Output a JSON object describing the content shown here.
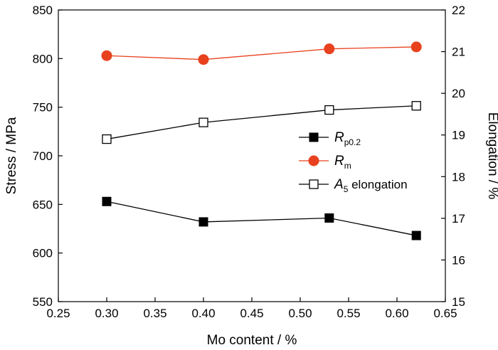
{
  "chart_data": {
    "type": "line",
    "xlabel": "Mo content / %",
    "ylabel_left": "Stress / MPa",
    "ylabel_right": "Elongation / %",
    "xlim": [
      0.25,
      0.65
    ],
    "ylim_left": [
      550,
      850
    ],
    "ylim_right": [
      15,
      22
    ],
    "x_ticks": [
      "0.25",
      "0.30",
      "0.35",
      "0.40",
      "0.45",
      "0.50",
      "0.55",
      "0.60",
      "0.65"
    ],
    "y_left_ticks": [
      "550",
      "600",
      "650",
      "700",
      "750",
      "800",
      "850"
    ],
    "y_right_ticks": [
      "15",
      "16",
      "17",
      "18",
      "19",
      "20",
      "21",
      "22"
    ],
    "grid": false,
    "legend_position": "center-right",
    "series": [
      {
        "name": "Rp0.2",
        "name_main": "R",
        "name_sub": "p0.2",
        "name_rest": "",
        "axis": "left",
        "marker": "filled-square",
        "color": "#000000",
        "x": [
          0.3,
          0.4,
          0.53,
          0.62
        ],
        "values": [
          653,
          632,
          636,
          618
        ]
      },
      {
        "name": "Rm",
        "name_main": "R",
        "name_sub": "m",
        "name_rest": "",
        "axis": "left",
        "marker": "filled-circle",
        "color": "#e8411e",
        "x": [
          0.3,
          0.4,
          0.53,
          0.62
        ],
        "values": [
          803,
          799,
          810,
          812
        ]
      },
      {
        "name": "A5 elongation",
        "name_main": "A",
        "name_sub": "5",
        "name_rest": " elongation",
        "axis": "right",
        "marker": "open-square",
        "color": "#000000",
        "x": [
          0.3,
          0.4,
          0.53,
          0.62
        ],
        "values": [
          18.9,
          19.3,
          19.6,
          19.7
        ]
      }
    ]
  }
}
